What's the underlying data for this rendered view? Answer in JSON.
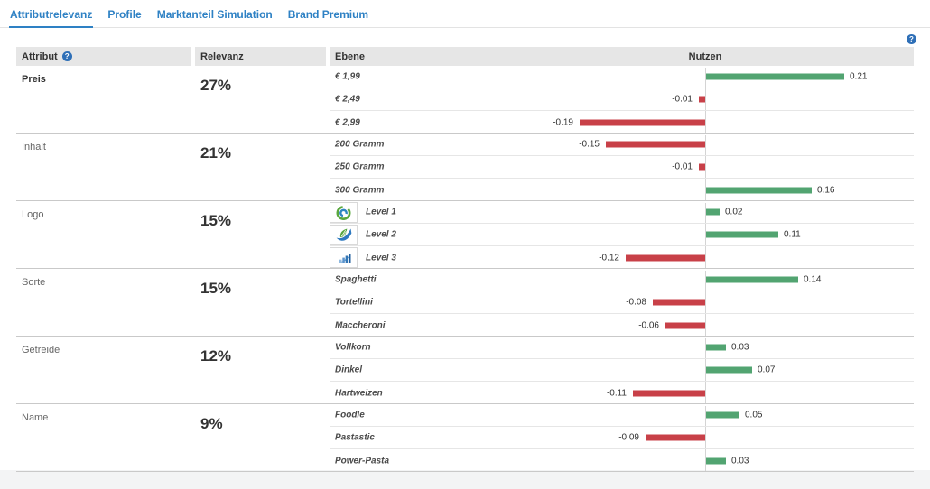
{
  "tabs": [
    {
      "label": "Attributrelevanz",
      "active": true
    },
    {
      "label": "Profile",
      "active": false
    },
    {
      "label": "Marktanteil Simulation",
      "active": false
    },
    {
      "label": "Brand Premium",
      "active": false
    }
  ],
  "icons": {
    "help_glyph": "?"
  },
  "colors": {
    "tab_blue": "#2e81c4",
    "positive_bar": "#52a471",
    "negative_bar": "#c84048",
    "header_bg": "#e6e6e6"
  },
  "table": {
    "headers": {
      "attribut": "Attribut",
      "relevanz": "Relevanz",
      "ebene": "Ebene",
      "nutzen": "Nutzen"
    },
    "groups": [
      {
        "attribut": "Preis",
        "emphasis": true,
        "relevanz": "27%",
        "levels": [
          {
            "label": "€ 1,99",
            "value": 0.21,
            "display": "0.21"
          },
          {
            "label": "€ 2,49",
            "value": -0.01,
            "display": "-0.01"
          },
          {
            "label": "€ 2,99",
            "value": -0.19,
            "display": "-0.19"
          }
        ]
      },
      {
        "attribut": "Inhalt",
        "emphasis": false,
        "relevanz": "21%",
        "levels": [
          {
            "label": "200 Gramm",
            "value": -0.15,
            "display": "-0.15"
          },
          {
            "label": "250 Gramm",
            "value": -0.01,
            "display": "-0.01"
          },
          {
            "label": "300 Gramm",
            "value": 0.16,
            "display": "0.16"
          }
        ]
      },
      {
        "attribut": "Logo",
        "emphasis": false,
        "relevanz": "15%",
        "levels": [
          {
            "label": "Level 1",
            "value": 0.02,
            "display": "0.02",
            "logo": "logo-spiral"
          },
          {
            "label": "Level 2",
            "value": 0.11,
            "display": "0.11",
            "logo": "logo-leaf-check"
          },
          {
            "label": "Level 3",
            "value": -0.12,
            "display": "-0.12",
            "logo": "logo-bar-chart"
          }
        ]
      },
      {
        "attribut": "Sorte",
        "emphasis": false,
        "relevanz": "15%",
        "levels": [
          {
            "label": "Spaghetti",
            "value": 0.14,
            "display": "0.14"
          },
          {
            "label": "Tortellini",
            "value": -0.08,
            "display": "-0.08"
          },
          {
            "label": "Maccheroni",
            "value": -0.06,
            "display": "-0.06"
          }
        ]
      },
      {
        "attribut": "Getreide",
        "emphasis": false,
        "relevanz": "12%",
        "levels": [
          {
            "label": "Vollkorn",
            "value": 0.03,
            "display": "0.03"
          },
          {
            "label": "Dinkel",
            "value": 0.07,
            "display": "0.07"
          },
          {
            "label": "Hartweizen",
            "value": -0.11,
            "display": "-0.11"
          }
        ]
      },
      {
        "attribut": "Name",
        "emphasis": false,
        "relevanz": "9%",
        "levels": [
          {
            "label": "Foodle",
            "value": 0.05,
            "display": "0.05"
          },
          {
            "label": "Pastastic",
            "value": -0.09,
            "display": "-0.09"
          },
          {
            "label": "Power-Pasta",
            "value": 0.03,
            "display": "0.03"
          }
        ]
      }
    ]
  }
}
